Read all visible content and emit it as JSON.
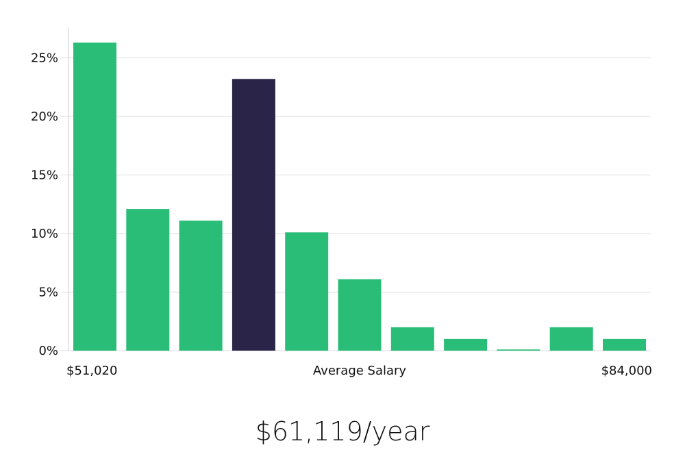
{
  "colors": {
    "bar": "#2abd78",
    "bar_highlight": "#2a2548",
    "grid": "#dddddd",
    "axis": "#cccccc"
  },
  "chart_data": {
    "type": "bar",
    "values": [
      26.3,
      12.1,
      11.1,
      23.2,
      10.1,
      6.1,
      2.0,
      1.0,
      0.1,
      2.0,
      1.0
    ],
    "highlight_index": 3,
    "ylim": [
      0,
      27.5
    ],
    "yticks": [
      0,
      5,
      10,
      15,
      20,
      25
    ],
    "ytick_labels": [
      "0%",
      "5%",
      "10%",
      "15%",
      "20%",
      "25%"
    ],
    "x_min_label": "$51,020",
    "x_max_label": "$84,000",
    "xlabel": "Average Salary",
    "grid": true
  },
  "salary": {
    "value": "$61,119/year"
  }
}
